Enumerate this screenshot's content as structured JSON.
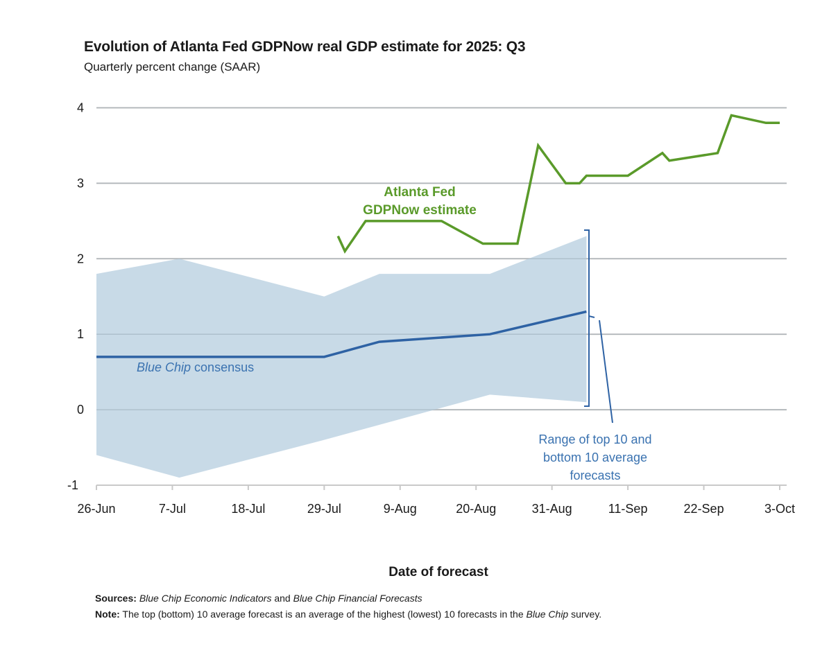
{
  "chart_data": {
    "type": "line",
    "title": "Evolution of Atlanta Fed GDPNow real GDP estimate for 2025: Q3",
    "subtitle": "Quarterly percent change (SAAR)",
    "xlabel": "Date of forecast",
    "ylabel": "",
    "ylim": [
      -1,
      4
    ],
    "yticks": [
      "4",
      "3",
      "2",
      "1",
      "0",
      "-1"
    ],
    "ytick_values": [
      4,
      3,
      2,
      1,
      0,
      -1
    ],
    "x_unit": "days since 26-Jun",
    "xlim": [
      0,
      99
    ],
    "xticks": [
      {
        "label": "26-Jun",
        "day": 0
      },
      {
        "label": "7-Jul",
        "day": 11
      },
      {
        "label": "18-Jul",
        "day": 22
      },
      {
        "label": "29-Jul",
        "day": 33
      },
      {
        "label": "9-Aug",
        "day": 44
      },
      {
        "label": "20-Aug",
        "day": 55
      },
      {
        "label": "31-Aug",
        "day": 66
      },
      {
        "label": "11-Sep",
        "day": 77
      },
      {
        "label": "22-Sep",
        "day": 88
      },
      {
        "label": "3-Oct",
        "day": 99
      }
    ],
    "grid": true,
    "series": [
      {
        "name": "Atlanta Fed GDPNow estimate",
        "color": "#5a9a2a",
        "x": [
          35,
          36,
          39,
          50,
          56,
          61,
          64,
          68,
          70,
          71,
          77,
          82,
          83,
          90,
          92,
          97,
          99
        ],
        "values": [
          2.3,
          2.1,
          2.5,
          2.5,
          2.2,
          2.2,
          3.5,
          3.0,
          3.0,
          3.1,
          3.1,
          3.4,
          3.3,
          3.4,
          3.9,
          3.8,
          3.8
        ]
      },
      {
        "name": "Blue Chip consensus",
        "color": "#2e62a4",
        "x": [
          0,
          33,
          41,
          57,
          71
        ],
        "values": [
          0.7,
          0.7,
          0.9,
          1.0,
          1.3
        ]
      },
      {
        "name": "Range of top 10 and bottom 10 average forecasts",
        "type": "area",
        "color": "#c8dae7",
        "x": [
          0,
          12,
          33,
          41,
          57,
          71
        ],
        "upper": [
          1.8,
          2.0,
          1.5,
          1.8,
          1.8,
          2.3
        ],
        "lower": [
          -0.6,
          -0.9,
          -0.4,
          -0.2,
          0.2,
          0.1
        ]
      }
    ],
    "annotations": {
      "gdpnow_line1": "Atlanta Fed",
      "gdpnow_line2": "GDPNow estimate",
      "bluechip_italic": "Blue Chip",
      "bluechip_rest": " consensus",
      "range_line1": "Range of top 10 and",
      "range_line2": "bottom 10 average",
      "range_line3": "forecasts"
    }
  },
  "footer": {
    "sources_label": "Sources:",
    "sources_italic1": "Blue Chip Economic Indicators",
    "sources_and": " and ",
    "sources_italic2": "Blue Chip Financial Forecasts",
    "note_label": "Note:",
    "note_text1": " The top (bottom) 10 average forecast is an average of the highest (lowest) 10 forecasts in the ",
    "note_italic": "Blue Chip",
    "note_text2": " survey."
  }
}
